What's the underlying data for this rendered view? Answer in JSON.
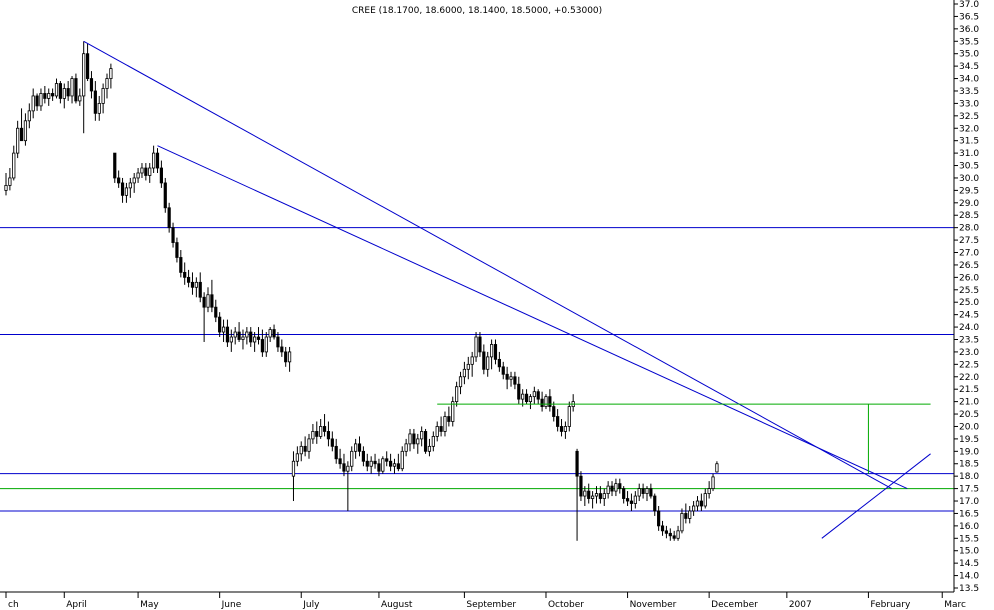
{
  "chart_data": {
    "type": "candlestick",
    "title": "CREE (18.1700, 18.6000, 18.1400, 18.5000, +0.53000)",
    "ylim": [
      13.5,
      37.0
    ],
    "y_ticks": [
      13.5,
      14.0,
      14.5,
      15.0,
      15.5,
      16.0,
      16.5,
      17.0,
      17.5,
      18.0,
      18.5,
      19.0,
      19.5,
      20.0,
      20.5,
      21.0,
      21.5,
      22.0,
      22.5,
      23.0,
      23.5,
      24.0,
      24.5,
      25.0,
      25.5,
      26.0,
      26.5,
      27.0,
      27.5,
      28.0,
      28.5,
      29.0,
      29.5,
      30.0,
      30.5,
      31.0,
      31.5,
      32.0,
      32.5,
      33.0,
      33.5,
      34.0,
      34.5,
      35.0,
      35.5,
      36.0,
      36.5,
      37.0
    ],
    "x_range": [
      0,
      243
    ],
    "months": [
      {
        "label": "ch",
        "x": 0
      },
      {
        "label": "April",
        "x": 15
      },
      {
        "label": "May",
        "x": 34
      },
      {
        "label": "June",
        "x": 55
      },
      {
        "label": "July",
        "x": 76
      },
      {
        "label": "August",
        "x": 96
      },
      {
        "label": "September",
        "x": 118
      },
      {
        "label": "October",
        "x": 139
      },
      {
        "label": "November",
        "x": 160
      },
      {
        "label": "December",
        "x": 181
      },
      {
        "label": "2007",
        "x": 201
      },
      {
        "label": "February",
        "x": 222
      },
      {
        "label": "Marc",
        "x": 241
      }
    ],
    "candles": [
      [
        0,
        29.5,
        30.2,
        29.3,
        29.7
      ],
      [
        1,
        29.7,
        30.4,
        29.5,
        30.0
      ],
      [
        2,
        30.0,
        31.3,
        29.9,
        31.0
      ],
      [
        3,
        31.0,
        32.3,
        30.8,
        32.0
      ],
      [
        4,
        32.0,
        32.8,
        31.7,
        31.5
      ],
      [
        5,
        31.5,
        32.6,
        31.3,
        32.3
      ],
      [
        6,
        32.3,
        33.0,
        32.0,
        32.7
      ],
      [
        7,
        32.7,
        33.6,
        32.4,
        33.3
      ],
      [
        8,
        33.3,
        33.4,
        32.7,
        32.9
      ],
      [
        9,
        32.9,
        33.6,
        32.7,
        33.4
      ],
      [
        10,
        33.4,
        33.7,
        33.0,
        33.2
      ],
      [
        11,
        33.2,
        33.6,
        32.9,
        33.4
      ],
      [
        12,
        33.4,
        33.6,
        33.1,
        33.3
      ],
      [
        13,
        33.3,
        34.0,
        33.2,
        33.8
      ],
      [
        14,
        33.8,
        33.9,
        33.0,
        33.2
      ],
      [
        15,
        33.2,
        33.8,
        32.8,
        33.6
      ],
      [
        16,
        33.6,
        33.9,
        33.1,
        33.3
      ],
      [
        17,
        33.3,
        34.1,
        33.0,
        34.0
      ],
      [
        18,
        34.0,
        34.2,
        33.0,
        33.1
      ],
      [
        19,
        33.1,
        33.6,
        32.9,
        33.3
      ],
      [
        20,
        33.3,
        35.5,
        31.8,
        35.0
      ],
      [
        21,
        35.0,
        35.4,
        33.9,
        34.0
      ],
      [
        22,
        34.0,
        34.3,
        33.2,
        33.5
      ],
      [
        23,
        33.5,
        33.9,
        32.3,
        32.6
      ],
      [
        24,
        32.6,
        33.3,
        32.3,
        33.0
      ],
      [
        25,
        33.0,
        33.8,
        32.6,
        33.6
      ],
      [
        26,
        33.6,
        34.2,
        33.2,
        34.0
      ],
      [
        27,
        34.0,
        34.6,
        33.6,
        34.4
      ],
      [
        28,
        31.0,
        31.0,
        29.8,
        30.0
      ],
      [
        29,
        30.0,
        30.3,
        29.6,
        29.8
      ],
      [
        30,
        29.8,
        30.0,
        29.0,
        29.3
      ],
      [
        31,
        29.3,
        29.8,
        29.0,
        29.6
      ],
      [
        32,
        29.6,
        30.0,
        29.2,
        29.8
      ],
      [
        33,
        29.8,
        30.2,
        29.4,
        30.0
      ],
      [
        34,
        30.0,
        30.4,
        29.8,
        30.2
      ],
      [
        35,
        30.2,
        30.6,
        30.0,
        30.4
      ],
      [
        36,
        30.4,
        30.6,
        29.9,
        30.1
      ],
      [
        37,
        30.1,
        30.6,
        29.8,
        30.4
      ],
      [
        38,
        30.4,
        31.3,
        30.2,
        31.0
      ],
      [
        39,
        31.0,
        31.2,
        30.2,
        30.4
      ],
      [
        40,
        30.4,
        30.7,
        29.6,
        29.8
      ],
      [
        41,
        29.8,
        30.0,
        28.6,
        28.8
      ],
      [
        42,
        28.8,
        29.0,
        27.8,
        28.0
      ],
      [
        43,
        28.0,
        28.2,
        27.2,
        27.4
      ],
      [
        44,
        27.4,
        27.6,
        26.6,
        26.8
      ],
      [
        45,
        26.8,
        27.1,
        26.0,
        26.2
      ],
      [
        46,
        26.2,
        26.6,
        25.7,
        26.0
      ],
      [
        47,
        26.0,
        26.3,
        25.6,
        25.8
      ],
      [
        48,
        25.8,
        26.2,
        25.3,
        25.6
      ],
      [
        49,
        25.6,
        26.0,
        25.2,
        25.8
      ],
      [
        50,
        25.8,
        26.2,
        25.0,
        25.2
      ],
      [
        51,
        25.2,
        25.4,
        23.4,
        24.8
      ],
      [
        52,
        24.8,
        25.6,
        24.6,
        25.3
      ],
      [
        53,
        25.3,
        25.9,
        24.6,
        24.8
      ],
      [
        54,
        24.8,
        25.1,
        24.2,
        24.4
      ],
      [
        55,
        24.4,
        24.6,
        23.6,
        23.8
      ],
      [
        56,
        23.8,
        24.3,
        23.4,
        24.0
      ],
      [
        57,
        24.0,
        24.3,
        23.2,
        23.4
      ],
      [
        58,
        23.4,
        23.9,
        23.0,
        23.6
      ],
      [
        59,
        23.6,
        24.0,
        23.3,
        23.8
      ],
      [
        60,
        23.8,
        24.2,
        23.4,
        23.5
      ],
      [
        61,
        23.5,
        23.9,
        23.1,
        23.6
      ],
      [
        62,
        23.6,
        24.0,
        23.3,
        23.8
      ],
      [
        63,
        23.8,
        24.0,
        23.2,
        23.4
      ],
      [
        64,
        23.4,
        23.8,
        23.0,
        23.6
      ],
      [
        65,
        23.6,
        24.0,
        23.3,
        23.5
      ],
      [
        66,
        23.5,
        23.9,
        22.8,
        23.0
      ],
      [
        67,
        23.0,
        23.8,
        22.8,
        23.6
      ],
      [
        68,
        23.6,
        24.0,
        23.4,
        23.9
      ],
      [
        69,
        23.9,
        24.1,
        23.5,
        23.6
      ],
      [
        70,
        23.6,
        23.8,
        23.0,
        23.2
      ],
      [
        71,
        23.2,
        23.5,
        22.8,
        23.0
      ],
      [
        72,
        23.0,
        23.2,
        22.4,
        22.6
      ],
      [
        73,
        22.6,
        23.2,
        22.2,
        23.0
      ],
      [
        74,
        18.0,
        19.0,
        17.0,
        18.6
      ],
      [
        75,
        18.6,
        19.2,
        18.4,
        18.9
      ],
      [
        76,
        18.9,
        19.4,
        18.6,
        19.2
      ],
      [
        77,
        19.2,
        19.6,
        18.8,
        19.0
      ],
      [
        78,
        19.0,
        19.7,
        18.7,
        19.5
      ],
      [
        79,
        19.5,
        20.1,
        19.3,
        19.8
      ],
      [
        80,
        19.8,
        20.2,
        19.3,
        19.6
      ],
      [
        81,
        19.6,
        20.3,
        19.5,
        20.0
      ],
      [
        82,
        20.0,
        20.5,
        19.6,
        19.8
      ],
      [
        83,
        19.8,
        20.2,
        19.2,
        19.5
      ],
      [
        84,
        19.5,
        19.8,
        19.0,
        19.2
      ],
      [
        85,
        19.2,
        19.5,
        18.5,
        18.7
      ],
      [
        86,
        18.7,
        19.1,
        18.3,
        18.5
      ],
      [
        87,
        18.5,
        18.9,
        18.0,
        18.2
      ],
      [
        88,
        18.2,
        18.6,
        16.6,
        18.4
      ],
      [
        89,
        18.4,
        19.2,
        18.2,
        19.0
      ],
      [
        90,
        19.0,
        19.5,
        18.7,
        19.3
      ],
      [
        91,
        19.3,
        19.6,
        18.8,
        19.0
      ],
      [
        92,
        19.0,
        19.2,
        18.4,
        18.6
      ],
      [
        93,
        18.6,
        18.9,
        18.2,
        18.4
      ],
      [
        94,
        18.4,
        18.8,
        18.1,
        18.6
      ],
      [
        95,
        18.6,
        18.9,
        18.3,
        18.5
      ],
      [
        96,
        18.5,
        18.7,
        18.0,
        18.2
      ],
      [
        97,
        18.2,
        18.8,
        18.1,
        18.7
      ],
      [
        98,
        18.7,
        19.0,
        18.4,
        18.6
      ],
      [
        99,
        18.6,
        18.9,
        18.2,
        18.4
      ],
      [
        100,
        18.4,
        18.7,
        18.1,
        18.5
      ],
      [
        101,
        18.5,
        18.9,
        18.2,
        18.3
      ],
      [
        102,
        18.3,
        19.2,
        18.2,
        19.0
      ],
      [
        103,
        19.0,
        19.5,
        18.8,
        19.3
      ],
      [
        104,
        19.3,
        19.9,
        19.0,
        19.7
      ],
      [
        105,
        19.7,
        19.9,
        19.1,
        19.3
      ],
      [
        106,
        19.3,
        19.7,
        18.9,
        19.5
      ],
      [
        107,
        19.5,
        20.0,
        19.2,
        19.8
      ],
      [
        108,
        19.8,
        19.9,
        18.9,
        19.0
      ],
      [
        109,
        19.0,
        19.5,
        18.8,
        19.2
      ],
      [
        110,
        19.2,
        19.8,
        19.0,
        19.6
      ],
      [
        111,
        19.6,
        20.2,
        19.4,
        20.0
      ],
      [
        112,
        20.0,
        20.4,
        19.6,
        19.8
      ],
      [
        113,
        19.8,
        20.6,
        19.6,
        20.4
      ],
      [
        114,
        20.4,
        20.8,
        20.0,
        20.2
      ],
      [
        115,
        20.2,
        21.2,
        20.0,
        21.0
      ],
      [
        116,
        21.0,
        21.8,
        20.8,
        21.6
      ],
      [
        117,
        21.6,
        22.2,
        21.3,
        22.0
      ],
      [
        118,
        22.0,
        22.6,
        21.7,
        22.3
      ],
      [
        119,
        22.3,
        22.8,
        21.9,
        22.5
      ],
      [
        120,
        22.5,
        23.0,
        22.0,
        22.8
      ],
      [
        121,
        22.8,
        23.8,
        22.6,
        23.6
      ],
      [
        122,
        23.6,
        23.8,
        22.8,
        23.0
      ],
      [
        123,
        23.0,
        23.3,
        22.1,
        22.3
      ],
      [
        124,
        22.3,
        23.0,
        22.0,
        22.8
      ],
      [
        125,
        22.8,
        23.5,
        22.3,
        23.3
      ],
      [
        126,
        23.3,
        23.5,
        22.5,
        22.7
      ],
      [
        127,
        22.7,
        23.0,
        22.2,
        22.4
      ],
      [
        128,
        22.4,
        22.6,
        21.9,
        22.1
      ],
      [
        129,
        22.1,
        22.4,
        21.5,
        21.9
      ],
      [
        130,
        21.9,
        22.2,
        21.6,
        22.0
      ],
      [
        131,
        22.0,
        22.2,
        21.5,
        21.7
      ],
      [
        132,
        21.7,
        22.0,
        20.9,
        21.1
      ],
      [
        133,
        21.1,
        21.5,
        20.8,
        21.3
      ],
      [
        134,
        21.3,
        21.5,
        20.9,
        21.0
      ],
      [
        135,
        21.0,
        21.3,
        20.7,
        21.2
      ],
      [
        136,
        21.2,
        21.6,
        20.9,
        21.4
      ],
      [
        137,
        21.4,
        21.5,
        20.9,
        21.1
      ],
      [
        138,
        21.1,
        21.4,
        20.6,
        20.8
      ],
      [
        139,
        20.8,
        21.3,
        20.7,
        21.2
      ],
      [
        140,
        21.2,
        21.5,
        20.6,
        20.8
      ],
      [
        141,
        20.8,
        21.0,
        20.2,
        20.4
      ],
      [
        142,
        20.4,
        20.7,
        19.8,
        20.0
      ],
      [
        143,
        20.0,
        20.3,
        19.6,
        19.8
      ],
      [
        144,
        19.8,
        20.2,
        19.5,
        20.0
      ],
      [
        145,
        20.0,
        21.0,
        19.8,
        20.8
      ],
      [
        146,
        20.8,
        21.3,
        20.6,
        21.0
      ],
      [
        147,
        19.0,
        19.1,
        15.4,
        18.0
      ],
      [
        148,
        18.0,
        18.2,
        17.0,
        17.2
      ],
      [
        149,
        17.2,
        17.6,
        16.8,
        17.4
      ],
      [
        150,
        17.4,
        17.7,
        16.9,
        17.1
      ],
      [
        151,
        17.1,
        17.4,
        16.7,
        17.2
      ],
      [
        152,
        17.2,
        17.6,
        16.9,
        17.3
      ],
      [
        153,
        17.3,
        17.6,
        16.9,
        17.1
      ],
      [
        154,
        17.1,
        17.5,
        16.8,
        17.3
      ],
      [
        155,
        17.3,
        17.8,
        17.1,
        17.6
      ],
      [
        156,
        17.6,
        17.8,
        17.2,
        17.4
      ],
      [
        157,
        17.4,
        17.9,
        17.2,
        17.7
      ],
      [
        158,
        17.7,
        17.9,
        17.3,
        17.5
      ],
      [
        159,
        17.5,
        17.6,
        16.9,
        17.1
      ],
      [
        160,
        17.1,
        17.4,
        16.8,
        17.0
      ],
      [
        161,
        17.0,
        17.3,
        16.6,
        16.9
      ],
      [
        162,
        16.9,
        17.4,
        16.7,
        17.2
      ],
      [
        163,
        17.2,
        17.7,
        17.0,
        17.5
      ],
      [
        164,
        17.5,
        17.7,
        17.1,
        17.3
      ],
      [
        165,
        17.3,
        17.6,
        17.0,
        17.5
      ],
      [
        166,
        17.5,
        17.7,
        17.1,
        17.2
      ],
      [
        167,
        17.2,
        17.3,
        16.4,
        16.6
      ],
      [
        168,
        16.6,
        16.8,
        15.8,
        16.0
      ],
      [
        169,
        16.0,
        16.2,
        15.6,
        15.8
      ],
      [
        170,
        15.8,
        16.0,
        15.5,
        15.7
      ],
      [
        171,
        15.7,
        15.9,
        15.4,
        15.6
      ],
      [
        172,
        15.6,
        15.8,
        15.4,
        15.5
      ],
      [
        173,
        15.5,
        16.0,
        15.4,
        15.8
      ],
      [
        174,
        15.8,
        16.7,
        15.7,
        16.5
      ],
      [
        175,
        16.5,
        16.9,
        16.1,
        16.3
      ],
      [
        176,
        16.3,
        16.8,
        16.1,
        16.6
      ],
      [
        177,
        16.6,
        17.0,
        16.4,
        16.8
      ],
      [
        178,
        16.8,
        17.2,
        16.6,
        17.0
      ],
      [
        179,
        17.0,
        17.3,
        16.6,
        16.8
      ],
      [
        180,
        16.8,
        17.5,
        16.7,
        17.3
      ],
      [
        181,
        17.3,
        17.8,
        17.1,
        17.5
      ],
      [
        182,
        17.5,
        18.1,
        17.4,
        17.97
      ],
      [
        183,
        18.17,
        18.6,
        18.14,
        18.5
      ]
    ],
    "reference_lines": [
      {
        "price": 28.0,
        "color": "#0000cc"
      },
      {
        "price": 23.7,
        "color": "#0000cc"
      },
      {
        "price": 18.1,
        "color": "#0000cc"
      },
      {
        "price": 16.6,
        "color": "#0000cc"
      },
      {
        "price": 17.5,
        "color": "#00aa00"
      }
    ],
    "segments": [
      {
        "x1": 20,
        "y1": 35.5,
        "x2": 228,
        "y2": 17.5,
        "color": "#0000cc"
      },
      {
        "x1": 39,
        "y1": 31.3,
        "x2": 232,
        "y2": 17.5,
        "color": "#0000cc"
      },
      {
        "x1": 210,
        "y1": 15.5,
        "x2": 238,
        "y2": 18.9,
        "color": "#0000cc"
      },
      {
        "x1": 111,
        "y1": 20.9,
        "x2": 238,
        "y2": 20.9,
        "color": "#00aa00"
      },
      {
        "x1": 222,
        "y1": 20.9,
        "x2": 222,
        "y2": 18.1,
        "color": "#00aa00"
      }
    ]
  }
}
